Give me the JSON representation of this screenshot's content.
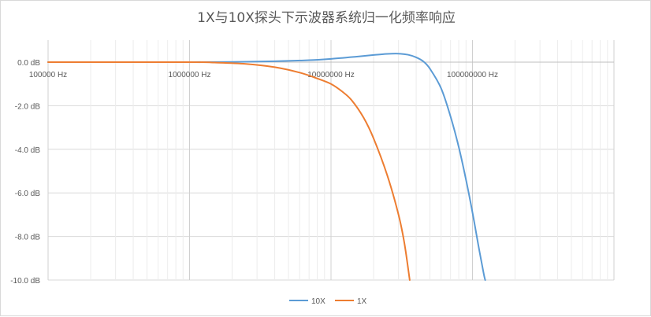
{
  "chart_data": {
    "type": "line",
    "title": "1X与10X探头下示波器系统归一化频率响应",
    "xscale": "log",
    "xlim": [
      100000,
      1000000000
    ],
    "ylim": [
      -10,
      1
    ],
    "x_ticks": [
      {
        "value": 100000,
        "label": "100000 Hz"
      },
      {
        "value": 1000000,
        "label": "1000000 Hz"
      },
      {
        "value": 10000000,
        "label": "10000000 Hz"
      },
      {
        "value": 100000000,
        "label": "100000000 Hz"
      }
    ],
    "y_ticks": [
      {
        "value": 0,
        "label": "0.0 dB"
      },
      {
        "value": -2,
        "label": "-2.0 dB"
      },
      {
        "value": -4,
        "label": "-4.0 dB"
      },
      {
        "value": -6,
        "label": "-6.0 dB"
      },
      {
        "value": -8,
        "label": "-8.0 dB"
      },
      {
        "value": -10,
        "label": "-10.0 dB"
      }
    ],
    "grid": true,
    "legend_position": "bottom",
    "series": [
      {
        "name": "10X",
        "color": "#5b9bd5",
        "points": [
          [
            100000,
            0
          ],
          [
            500000,
            0
          ],
          [
            1000000,
            0
          ],
          [
            2000000,
            0.01
          ],
          [
            4000000,
            0.04
          ],
          [
            7000000,
            0.09
          ],
          [
            10000000,
            0.15
          ],
          [
            15000000,
            0.25
          ],
          [
            20000000,
            0.33
          ],
          [
            25000000,
            0.38
          ],
          [
            30000000,
            0.39
          ],
          [
            35000000,
            0.34
          ],
          [
            40000000,
            0.22
          ],
          [
            45000000,
            0.03
          ],
          [
            50000000,
            -0.3
          ],
          [
            60000000,
            -1.2
          ],
          [
            70000000,
            -2.5
          ],
          [
            80000000,
            -3.9
          ],
          [
            90000000,
            -5.4
          ],
          [
            100000000,
            -6.9
          ],
          [
            110000000,
            -8.4
          ],
          [
            120000000,
            -9.7
          ],
          [
            123000000,
            -10
          ]
        ]
      },
      {
        "name": "1X",
        "color": "#ed7d31",
        "points": [
          [
            100000,
            0
          ],
          [
            1000000,
            0
          ],
          [
            1500000,
            -0.02
          ],
          [
            2500000,
            -0.08
          ],
          [
            4000000,
            -0.23
          ],
          [
            6000000,
            -0.48
          ],
          [
            8000000,
            -0.75
          ],
          [
            10000000,
            -1.0
          ],
          [
            12000000,
            -1.35
          ],
          [
            14000000,
            -1.75
          ],
          [
            17000000,
            -2.55
          ],
          [
            20000000,
            -3.5
          ],
          [
            25000000,
            -5.2
          ],
          [
            30000000,
            -7.0
          ],
          [
            33000000,
            -8.3
          ],
          [
            36000000,
            -10
          ]
        ]
      }
    ]
  }
}
